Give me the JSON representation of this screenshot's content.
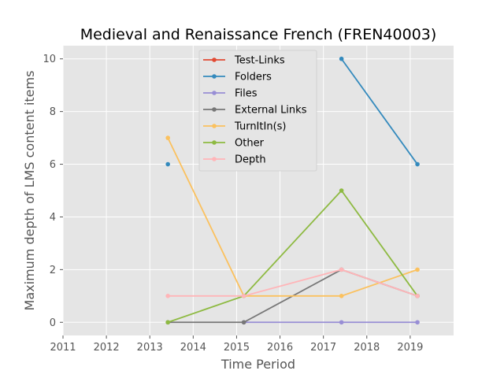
{
  "chart_data": {
    "type": "line",
    "title": "Medieval and Renaissance French (FREN40003)",
    "xlabel": "Time Period",
    "ylabel": "Maximum depth of LMS content items",
    "xlim": [
      2011,
      2020
    ],
    "ylim": [
      -0.5,
      10.5
    ],
    "x_ticks": [
      2011,
      2012,
      2013,
      2014,
      2015,
      2016,
      2017,
      2018,
      2019
    ],
    "y_ticks": [
      0,
      2,
      4,
      6,
      8,
      10
    ],
    "grid": true,
    "legend_position": "top-center",
    "x": [
      "2013-06",
      "2015-03",
      "2017-06",
      "2019-03"
    ],
    "series": [
      {
        "name": "Test-Links",
        "color": "#E24A33",
        "values": [
          null,
          null,
          null,
          null
        ]
      },
      {
        "name": "Folders",
        "color": "#348ABD",
        "values": [
          6,
          null,
          10,
          6
        ]
      },
      {
        "name": "Files",
        "color": "#988ED5",
        "values": [
          null,
          0,
          0,
          0
        ]
      },
      {
        "name": "External Links",
        "color": "#777777",
        "values": [
          0,
          0,
          2,
          1
        ]
      },
      {
        "name": "TurnItIn(s)",
        "color": "#FBC15E",
        "values": [
          7,
          1,
          1,
          2
        ]
      },
      {
        "name": "Other",
        "color": "#8EBA42",
        "values": [
          0,
          1,
          5,
          1
        ]
      },
      {
        "name": "Depth",
        "color": "#FFB5B8",
        "values": [
          1,
          1,
          2,
          1
        ]
      }
    ]
  }
}
